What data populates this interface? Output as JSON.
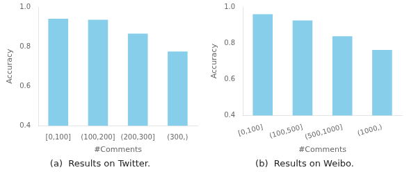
{
  "chart_data": [
    {
      "type": "bar",
      "title": "(a)  Results on Twitter.",
      "categories": [
        "[0,100]",
        "(100,200]",
        "(200,300]",
        "(300,)"
      ],
      "values": [
        0.94,
        0.935,
        0.865,
        0.775
      ],
      "xlabel": "#Comments",
      "ylabel": "Accuracy",
      "color": "#87CEEB",
      "ylim": [
        0.4,
        1.0
      ],
      "yticks": [
        0.4,
        0.6,
        0.8,
        {
          "value": 1.0,
          "label": "1.0"
        }
      ],
      "grid": false
    },
    {
      "type": "bar",
      "title": "(b)  Results on Weibo.",
      "categories": [
        "[0,100]",
        "(100,500]",
        "(500,1000]",
        "(1000,)"
      ],
      "values": [
        0.96,
        0.925,
        0.838,
        0.762
      ],
      "xlabel": "#Comments",
      "ylabel": "Accuracy",
      "color": "#87CEEB",
      "ylim": [
        0.4,
        1.0
      ],
      "yticks": [
        0.4,
        0.6,
        0.8,
        {
          "value": 1.0,
          "label": "1.0"
        }
      ],
      "grid": false
    }
  ]
}
